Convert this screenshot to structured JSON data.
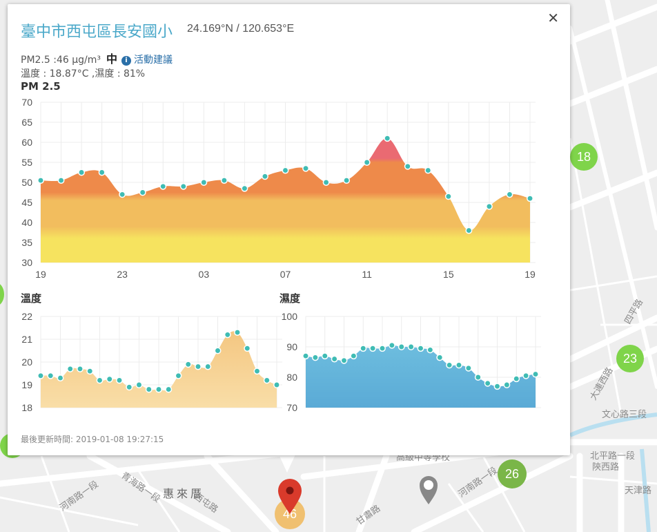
{
  "map": {
    "labels": [
      "惠來厝",
      "河南路一段",
      "青海路一段",
      "西屯路",
      "甘肅路",
      "河南路一段",
      "文心路三段",
      "北平路一段",
      "天津路",
      "陝西路",
      "四平路",
      "高級中等學校",
      "大連西路"
    ],
    "clusters": [
      "18",
      "23",
      "26",
      "46"
    ],
    "colors": {
      "green": "#7fd44a",
      "dark_green": "#7ab648",
      "orange": "#f0c070",
      "pin": "#d93a2b"
    }
  },
  "popup": {
    "close_icon": "close-icon",
    "title": "臺中市西屯區長安國小",
    "coords": "24.169°N / 120.653°E",
    "pm_line": "PM2.5 :46 μg/m³",
    "level": "中",
    "info_icon": "i",
    "advice_link": "活動建議",
    "weather_line": "溫度 : 18.87°C ,濕度 : 81%",
    "updated": "最後更新時間: 2019-01-08 19:27:15"
  },
  "chart_data": [
    {
      "type": "area",
      "title": "PM 2.5",
      "ylim": [
        30,
        70
      ],
      "yticks": [
        "70",
        "65",
        "60",
        "55",
        "50",
        "45",
        "40",
        "35",
        "30"
      ],
      "xticks": [
        {
          "index": 0,
          "label": "19"
        },
        {
          "index": 5,
          "label": "23"
        },
        {
          "index": 10,
          "label": "03"
        },
        {
          "index": 15,
          "label": "07"
        },
        {
          "index": 20,
          "label": "11"
        },
        {
          "index": 25,
          "label": "15"
        },
        {
          "index": 30,
          "label": "19"
        }
      ],
      "values": [
        50.5,
        50.5,
        52.5,
        52.5,
        47,
        47.5,
        49,
        49,
        50,
        50.5,
        48.5,
        51.5,
        53,
        53.5,
        50,
        50.5,
        55,
        61,
        54,
        53,
        46.5,
        38,
        44,
        47,
        46
      ],
      "x_index": [
        0,
        1.25,
        2.5,
        3.75,
        5,
        6.25,
        7.5,
        8.75,
        10,
        11.25,
        12.5,
        13.75,
        15,
        16.25,
        17.5,
        18.75,
        20,
        21.25,
        22.5,
        23.75,
        25,
        26.25,
        27.5,
        28.75,
        30
      ],
      "colors": {
        "yellow": "#f6e35f",
        "light_orange": "#f2bd5e",
        "orange": "#ee8a4a",
        "red": "#ea6a72",
        "dot": "#3fbcb4"
      },
      "grid": true
    },
    {
      "type": "area",
      "title": "溫度",
      "ylim": [
        18,
        22
      ],
      "yticks": [
        "22",
        "21",
        "20",
        "19",
        "18"
      ],
      "values": [
        19.4,
        19.4,
        19.3,
        19.7,
        19.7,
        19.6,
        19.2,
        19.25,
        19.2,
        18.9,
        19.0,
        18.8,
        18.8,
        18.8,
        19.4,
        19.9,
        19.8,
        19.8,
        20.5,
        21.2,
        21.3,
        20.6,
        19.6,
        19.2,
        19.0
      ],
      "colors": {
        "fill_top": "#f3c27a",
        "fill_bottom": "#f9dea8",
        "dot": "#3fbcb4"
      },
      "grid": true
    },
    {
      "type": "area",
      "title": "濕度",
      "ylim": [
        70,
        100
      ],
      "yticks": [
        "100",
        "90",
        "80",
        "70"
      ],
      "values": [
        87,
        86.5,
        87,
        86,
        85.5,
        87,
        89.5,
        89.5,
        89.5,
        90.5,
        90,
        90,
        89.5,
        89,
        86.5,
        84,
        84,
        83,
        80,
        78,
        77,
        77.5,
        79.5,
        80.5,
        81
      ],
      "colors": {
        "fill_top": "#76c6e2",
        "fill_bottom": "#5aaad6",
        "dot": "#3fbcb4"
      },
      "grid": true
    }
  ]
}
